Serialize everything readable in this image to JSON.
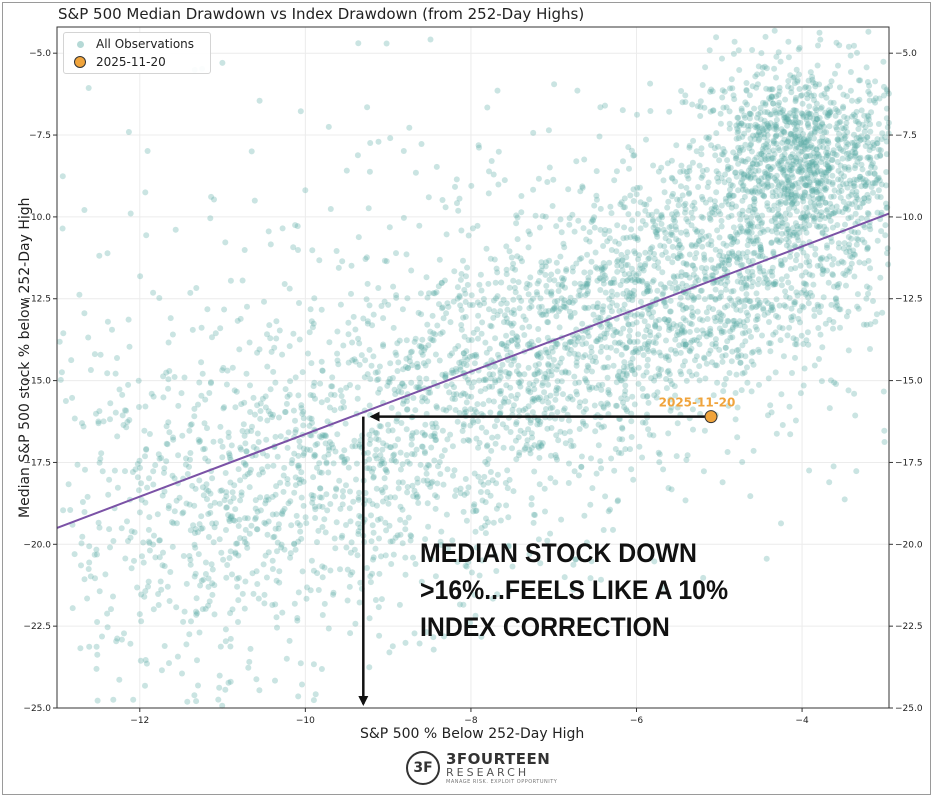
{
  "chart_data": {
    "type": "scatter",
    "title": "S&P 500 Median Drawdown vs Index Drawdown (from 252-Day Highs)",
    "xlabel": "S&P 500 % Below 252-Day High",
    "ylabel": "Median S&P 500 stock % below 252-Day High",
    "xlim": [
      -13.0,
      -2.95
    ],
    "ylim": [
      -25.0,
      -4.2
    ],
    "x_ticks": [
      -12,
      -10,
      -8,
      -6,
      -4
    ],
    "y_ticks": [
      -5.0,
      -7.5,
      -10.0,
      -12.5,
      -15.0,
      -17.5,
      -20.0,
      -22.5,
      -25.0
    ],
    "grid": true,
    "legend_position": "top-left",
    "series": [
      {
        "name": "All Observations",
        "color": "#5aaaa5",
        "clusters": [
          {
            "cx": -4.0,
            "cy": -8.5,
            "sx": 0.7,
            "sy": 1.6,
            "n": 1400
          },
          {
            "cx": -5.5,
            "cy": -12.2,
            "sx": 1.1,
            "sy": 1.7,
            "n": 1100
          },
          {
            "cx": -7.5,
            "cy": -15.0,
            "sx": 1.2,
            "sy": 1.8,
            "n": 800
          },
          {
            "cx": -9.3,
            "cy": -18.2,
            "sx": 1.2,
            "sy": 2.0,
            "n": 550
          },
          {
            "cx": -11.3,
            "cy": -19.5,
            "sx": 1.1,
            "sy": 3.2,
            "n": 550
          },
          {
            "cx": -8.0,
            "cy": -13.0,
            "sx": 3.0,
            "sy": 4.0,
            "n": 400
          }
        ]
      },
      {
        "name": "2025-11-20",
        "color": "#f0a43c",
        "points": [
          {
            "x": -5.1,
            "y": -16.1
          }
        ]
      }
    ],
    "trend_line": {
      "color": "#7b52a6",
      "points": [
        {
          "x": -13.0,
          "y": -19.5
        },
        {
          "x": -2.95,
          "y": -9.9
        }
      ]
    },
    "point_label": "2025-11-20",
    "arrows": [
      {
        "from": {
          "x": -5.1,
          "y": -16.1
        },
        "to": {
          "x": -9.2,
          "y": -16.1
        }
      },
      {
        "from": {
          "x": -9.3,
          "y": -16.1
        },
        "to": {
          "x": -9.3,
          "y": -25.0
        }
      }
    ],
    "annotation": "MEDIAN STOCK DOWN\n>16%...FEELS LIKE A 10%\nINDEX CORRECTION"
  },
  "logo": {
    "mark": "3F",
    "name": "3FOURTEEN",
    "sub": "RESEARCH",
    "tagline": "MANAGE RISK. EXPLOIT OPPORTUNITY"
  }
}
